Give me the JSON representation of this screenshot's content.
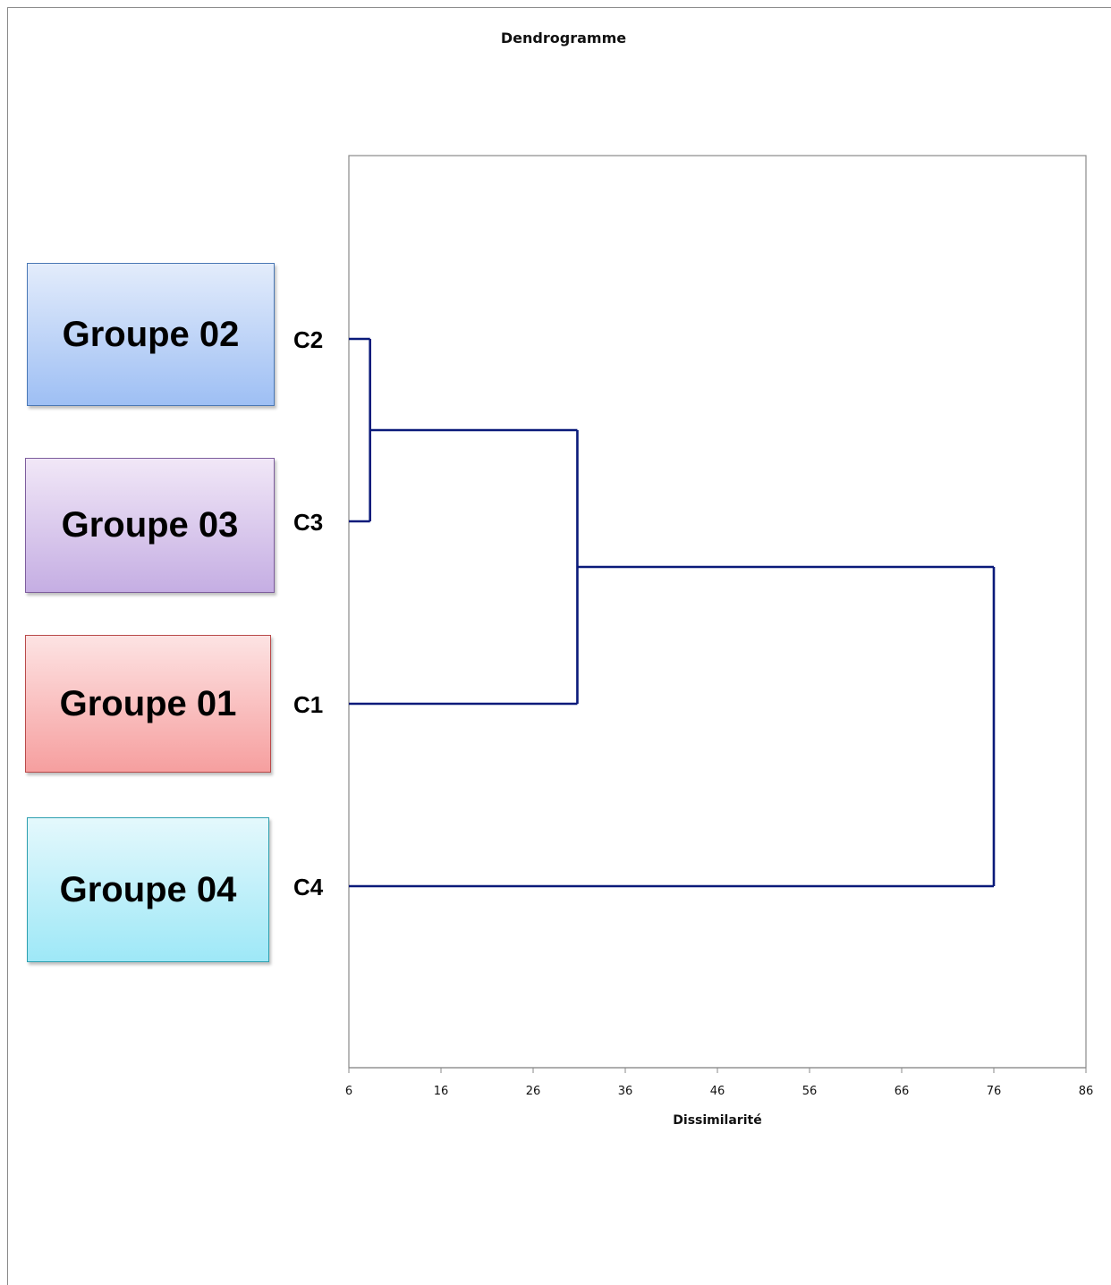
{
  "chart_data": {
    "type": "dendrogram",
    "title": "Dendrogramme",
    "xlabel": "Dissimilarité",
    "ylabel": "",
    "xlim": [
      6,
      86
    ],
    "xticks": [
      6,
      16,
      26,
      36,
      46,
      56,
      66,
      76,
      86
    ],
    "leaves": [
      "C2",
      "C3",
      "C1",
      "C4"
    ],
    "merges": [
      {
        "left": "C2",
        "right": "C3",
        "height": 8.3
      },
      {
        "left": "C2+C3",
        "right": "C1",
        "height": 30.8
      },
      {
        "left": "C2+C3+C1",
        "right": "C4",
        "height": 76
      }
    ],
    "groups": [
      {
        "label": "Groupe 02",
        "leaf": "C2",
        "color": "#9ebff4"
      },
      {
        "label": "Groupe 03",
        "leaf": "C3",
        "color": "#c5aee3"
      },
      {
        "label": "Groupe 01",
        "leaf": "C1",
        "color": "#f69f9f"
      },
      {
        "label": "Groupe 04",
        "leaf": "C4",
        "color": "#9ee8f7"
      }
    ],
    "line_color": "#0a1a7a",
    "grid": false
  }
}
